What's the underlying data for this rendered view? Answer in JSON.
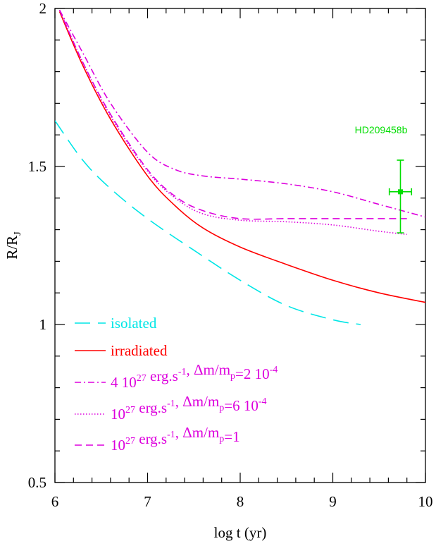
{
  "chart_data": {
    "type": "line",
    "xlabel": "log t (yr)",
    "ylabel": {
      "main": "R/R",
      "sub": "J"
    },
    "xlim": [
      6,
      10
    ],
    "ylim": [
      0.5,
      2
    ],
    "xticks": [
      "6",
      "7",
      "8",
      "9",
      "10"
    ],
    "yticks": [
      "0.5",
      "1",
      "1.5",
      "2"
    ],
    "grid": false,
    "legend_placement": "bottom-left",
    "series": [
      {
        "name": "isolated",
        "color": "#00e6e6",
        "dash": "long-dash",
        "x": [
          6.0,
          6.3,
          6.6,
          7.0,
          7.5,
          8.0,
          8.5,
          9.0,
          9.3
        ],
        "y": [
          1.645,
          1.52,
          1.43,
          1.335,
          1.235,
          1.14,
          1.06,
          1.015,
          1.0
        ]
      },
      {
        "name": "irradiated",
        "color": "#ff0000",
        "dash": "solid",
        "x": [
          6.05,
          6.3,
          6.6,
          7.0,
          7.3,
          7.6,
          8.0,
          8.5,
          9.0,
          9.5,
          10.0
        ],
        "y": [
          1.99,
          1.82,
          1.65,
          1.47,
          1.375,
          1.305,
          1.245,
          1.19,
          1.14,
          1.1,
          1.07
        ]
      },
      {
        "name_parts": [
          {
            "t": "4 10"
          },
          {
            "t": "27",
            "sup": true
          },
          {
            "t": " erg.s"
          },
          {
            "t": "-1",
            "sup": true
          },
          {
            "t": ",  Δm/m"
          },
          {
            "t": "p",
            "sub": true
          },
          {
            "t": "=2 10"
          },
          {
            "t": "-4",
            "sup": true
          }
        ],
        "color": "#dd00dd",
        "dash": "dash-dot",
        "x": [
          6.05,
          6.3,
          6.6,
          7.0,
          7.3,
          7.6,
          8.0,
          8.5,
          9.0,
          9.5,
          10.0
        ],
        "y": [
          1.995,
          1.86,
          1.7,
          1.545,
          1.49,
          1.47,
          1.46,
          1.445,
          1.42,
          1.38,
          1.34
        ]
      },
      {
        "name_parts": [
          {
            "t": "10"
          },
          {
            "t": "27",
            "sup": true
          },
          {
            "t": " erg.s"
          },
          {
            "t": "-1",
            "sup": true
          },
          {
            "t": ",   Δm/m"
          },
          {
            "t": "p",
            "sub": true
          },
          {
            "t": "=6 10"
          },
          {
            "t": "-4",
            "sup": true
          }
        ],
        "color": "#dd00dd",
        "dash": "dotted",
        "x": [
          6.05,
          6.3,
          6.6,
          7.0,
          7.3,
          7.6,
          8.0,
          8.5,
          9.0,
          9.5,
          9.8
        ],
        "y": [
          1.995,
          1.83,
          1.66,
          1.485,
          1.4,
          1.35,
          1.33,
          1.325,
          1.315,
          1.295,
          1.285
        ]
      },
      {
        "name_parts": [
          {
            "t": "10"
          },
          {
            "t": "27",
            "sup": true
          },
          {
            "t": " erg.s"
          },
          {
            "t": "-1",
            "sup": true
          },
          {
            "t": ",   Δm/m"
          },
          {
            "t": "p",
            "sub": true
          },
          {
            "t": "=1"
          }
        ],
        "color": "#dd00dd",
        "dash": "short-dash",
        "x": [
          6.05,
          6.3,
          6.6,
          7.0,
          7.3,
          7.6,
          8.0,
          8.5,
          9.0,
          9.5,
          9.8
        ],
        "y": [
          1.995,
          1.83,
          1.665,
          1.49,
          1.405,
          1.36,
          1.335,
          1.335,
          1.335,
          1.335,
          1.335
        ]
      }
    ],
    "annotations": [
      {
        "label": "HD209458b",
        "color": "#00dd00",
        "x": 9.73,
        "y": 1.42,
        "xerr": [
          0.12,
          0.12
        ],
        "yerr": [
          0.13,
          0.1
        ]
      }
    ]
  }
}
